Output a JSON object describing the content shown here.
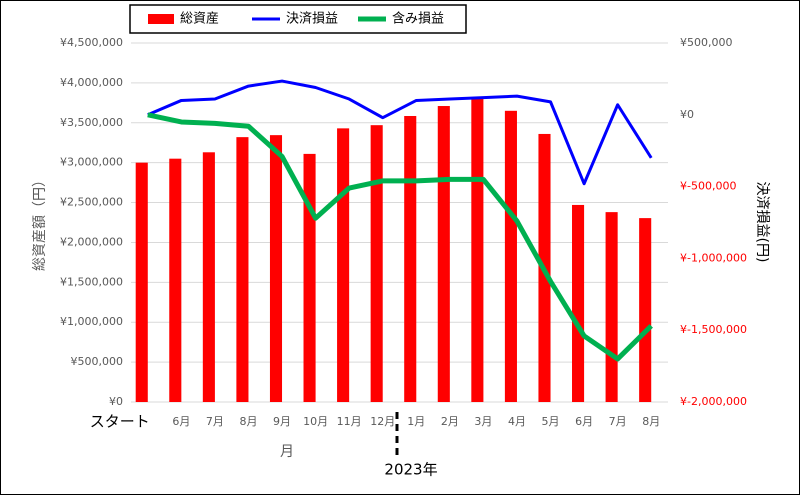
{
  "chart_data": {
    "type": "bar_line",
    "categories": [
      "スタート",
      "6月",
      "7月",
      "8月",
      "9月",
      "10月",
      "11月",
      "12月",
      "1月",
      "2月",
      "3月",
      "4月",
      "5月",
      "6月",
      "7月",
      "8月"
    ],
    "series": [
      {
        "name": "総資産",
        "type": "bar",
        "color": "#ff0000",
        "values": [
          3000000,
          3050000,
          3130000,
          3320000,
          3345000,
          3110000,
          3430000,
          3470000,
          3585000,
          3710000,
          3810000,
          3650000,
          3360000,
          2470000,
          2380000,
          2305000
        ]
      },
      {
        "name": "決済損益",
        "type": "line",
        "axis": "y2",
        "color": "#0000ff",
        "width": 3,
        "values": [
          0,
          100000,
          110000,
          200000,
          235000,
          190000,
          110000,
          -20000,
          100000,
          110000,
          120000,
          130000,
          90000,
          -480000,
          70000,
          -300000
        ]
      },
      {
        "name": "含み損益",
        "type": "line",
        "axis": "y2",
        "color": "#00b050",
        "width": 5,
        "values": [
          0,
          -50000,
          -60000,
          -80000,
          -290000,
          -720000,
          -510000,
          -460000,
          -460000,
          -450000,
          -450000,
          -740000,
          -1160000,
          -1540000,
          -1700000,
          -1470000
        ]
      }
    ],
    "ylabel": "総資産額（円）",
    "y2label": "決済損益(円)",
    "xlabel": "月",
    "annotation": "2023年",
    "ylim": [
      0,
      4500000
    ],
    "yticks": [
      {
        "value": 0,
        "label": "¥0"
      },
      {
        "value": 500000,
        "label": "¥500,000"
      },
      {
        "value": 1000000,
        "label": "¥1,000,000"
      },
      {
        "value": 1500000,
        "label": "¥1,500,000"
      },
      {
        "value": 2000000,
        "label": "¥2,000,000"
      },
      {
        "value": 2500000,
        "label": "¥2,500,000"
      },
      {
        "value": 3000000,
        "label": "¥3,000,000"
      },
      {
        "value": 3500000,
        "label": "¥3,500,000"
      },
      {
        "value": 4000000,
        "label": "¥4,000,000"
      },
      {
        "value": 4500000,
        "label": "¥4,500,000"
      }
    ],
    "y2lim": [
      -2000000,
      500000
    ],
    "y2ticks": [
      {
        "value": -2000000,
        "label": "¥-2,000,000"
      },
      {
        "value": -1500000,
        "label": "¥-1,500,000"
      },
      {
        "value": -1000000,
        "label": "¥-1,000,000"
      },
      {
        "value": -500000,
        "label": "¥-500,000"
      },
      {
        "value": 0,
        "label": "¥0"
      },
      {
        "value": 500000,
        "label": "¥500,000"
      }
    ],
    "negative_tick_color": "#ff0000",
    "grid": true
  }
}
